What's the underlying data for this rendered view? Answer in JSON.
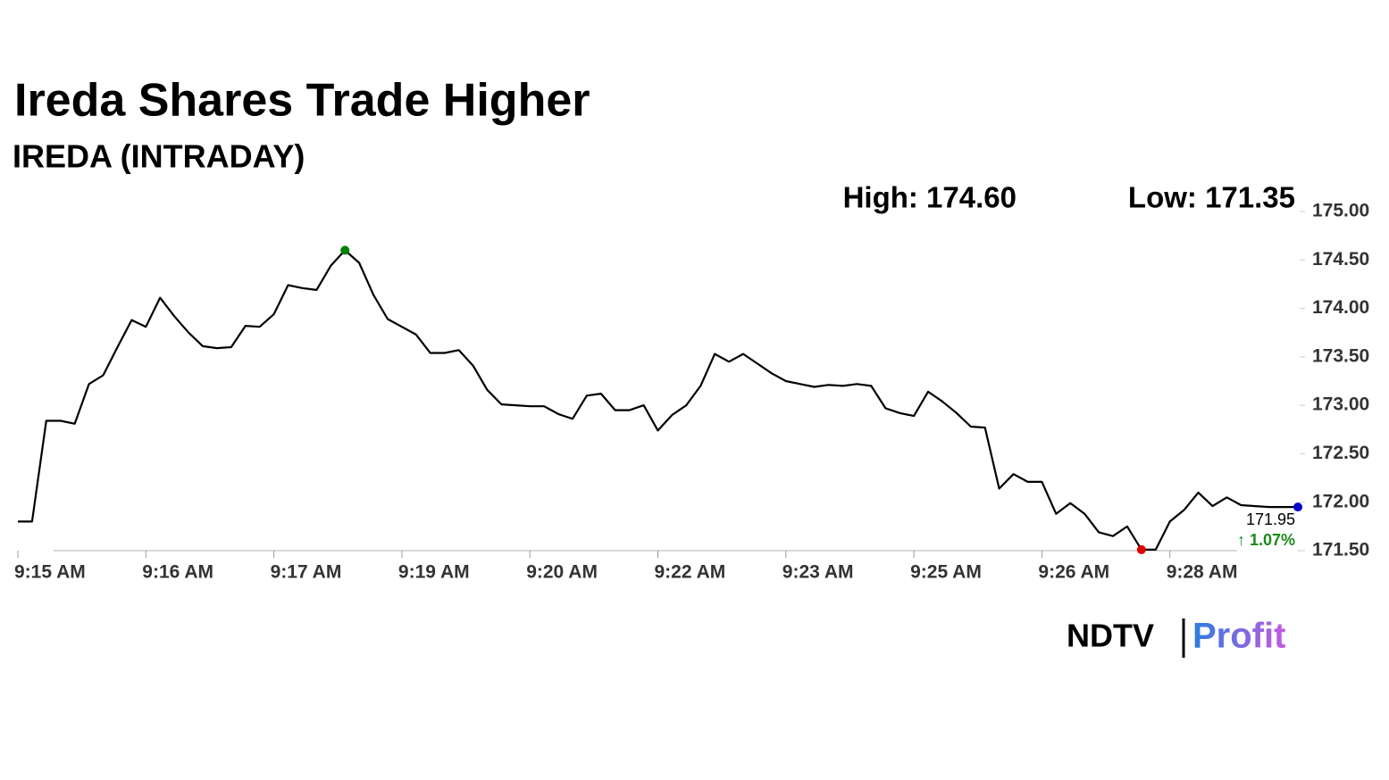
{
  "chart_data": {
    "type": "line",
    "title": "Ireda Shares Trade Higher",
    "subtitle": "IREDA (INTRADAY)",
    "high_label": "High: 174.60",
    "low_label": "Low: 171.35",
    "last_label": "171.95",
    "change_label": "↑ 1.07%",
    "brand": [
      "NDTV",
      "Profit"
    ],
    "categories": [
      "9:15 AM",
      null,
      null,
      null,
      null,
      null,
      null,
      null,
      null,
      "9:16 AM",
      null,
      null,
      null,
      null,
      null,
      null,
      null,
      null,
      "9:17 AM",
      null,
      null,
      null,
      null,
      null,
      null,
      null,
      null,
      "9:19 AM",
      null,
      null,
      null,
      null,
      null,
      null,
      null,
      null,
      "9:20 AM",
      null,
      null,
      null,
      null,
      null,
      null,
      null,
      null,
      "9:22 AM",
      null,
      null,
      null,
      null,
      null,
      null,
      null,
      null,
      "9:23 AM",
      null,
      null,
      null,
      null,
      null,
      null,
      null,
      null,
      "9:25 AM",
      null,
      null,
      null,
      null,
      null,
      null,
      null,
      null,
      "9:26 AM",
      null,
      null,
      null,
      null,
      null,
      null,
      null,
      null,
      "9:28 AM",
      null,
      null,
      null,
      null,
      null,
      null,
      null,
      null,
      null
    ],
    "values": [
      171.8,
      171.8,
      172.84,
      172.84,
      172.81,
      173.22,
      173.31,
      173.6,
      173.88,
      173.81,
      174.11,
      173.92,
      173.75,
      173.61,
      173.59,
      173.6,
      173.82,
      173.81,
      173.94,
      174.24,
      174.21,
      174.19,
      174.44,
      174.6,
      174.47,
      174.14,
      173.89,
      173.81,
      173.73,
      173.54,
      173.54,
      173.57,
      173.41,
      173.16,
      173.01,
      173.0,
      172.99,
      172.99,
      172.91,
      172.86,
      173.1,
      173.12,
      172.95,
      172.95,
      173.0,
      172.74,
      172.9,
      173.0,
      173.2,
      173.53,
      173.45,
      173.53,
      173.43,
      173.33,
      173.25,
      173.22,
      173.19,
      173.21,
      173.2,
      173.22,
      173.2,
      172.97,
      172.92,
      172.89,
      173.14,
      173.04,
      172.92,
      172.78,
      172.77,
      172.14,
      172.29,
      172.21,
      172.21,
      171.88,
      171.99,
      171.88,
      171.69,
      171.65,
      171.75,
      171.51,
      171.51,
      171.8,
      171.92,
      172.1,
      171.96,
      172.05,
      171.97,
      171.96,
      171.95,
      171.95,
      171.95
    ],
    "color": "#000000",
    "markers": [
      {
        "index": 23,
        "color": "#008000"
      },
      {
        "index": 79,
        "color": "#e00000"
      },
      {
        "index": 90,
        "color": "#0000cc"
      }
    ],
    "ylim": [
      171.5,
      175
    ],
    "yticks": [
      {
        "value": 171.5,
        "label": "171.50"
      },
      {
        "value": 172,
        "label": "172.00"
      },
      {
        "value": 172.5,
        "label": "172.50"
      },
      {
        "value": 173,
        "label": "173.00"
      },
      {
        "value": 173.5,
        "label": "173.50"
      },
      {
        "value": 174,
        "label": "174.00"
      },
      {
        "value": 174.5,
        "label": "174.50"
      },
      {
        "value": 175,
        "label": "175.00"
      }
    ],
    "axis_side": "right"
  }
}
